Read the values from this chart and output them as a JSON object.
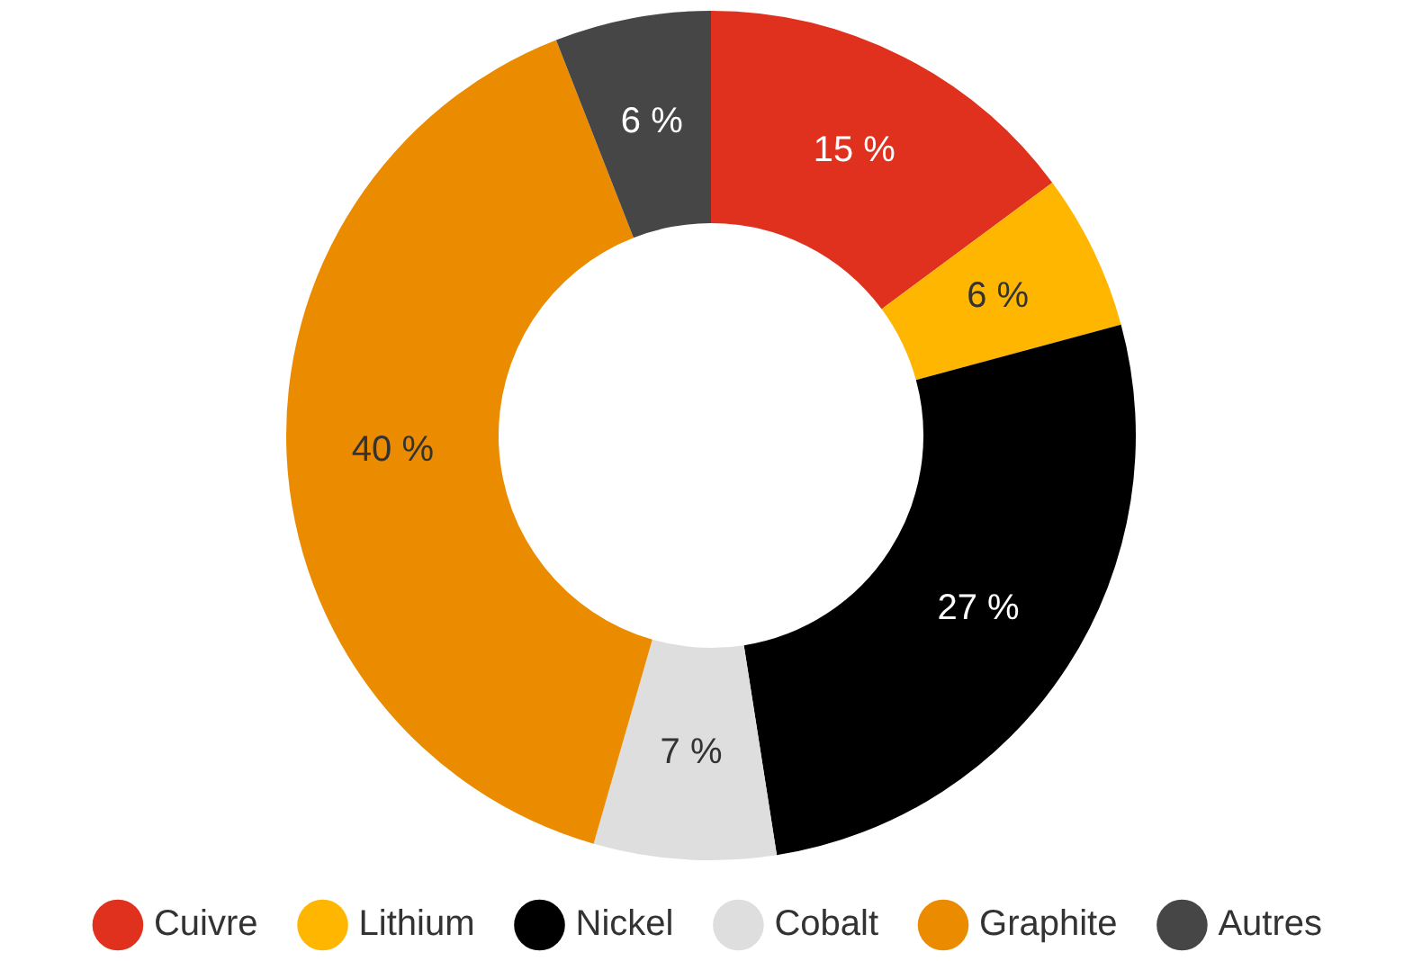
{
  "chart_data": {
    "type": "donut",
    "categories": [
      "Cuivre",
      "Lithium",
      "Nickel",
      "Cobalt",
      "Graphite",
      "Autres"
    ],
    "values": [
      15,
      6,
      27,
      7,
      40,
      6
    ],
    "colors": [
      "#e0301e",
      "#ffb600",
      "#000000",
      "#dedede",
      "#eb8c00",
      "#464646"
    ],
    "value_labels": [
      "15 %",
      "6 %",
      "27 %",
      "7 %",
      "40 %",
      "6 %"
    ],
    "legend": "bottom"
  }
}
